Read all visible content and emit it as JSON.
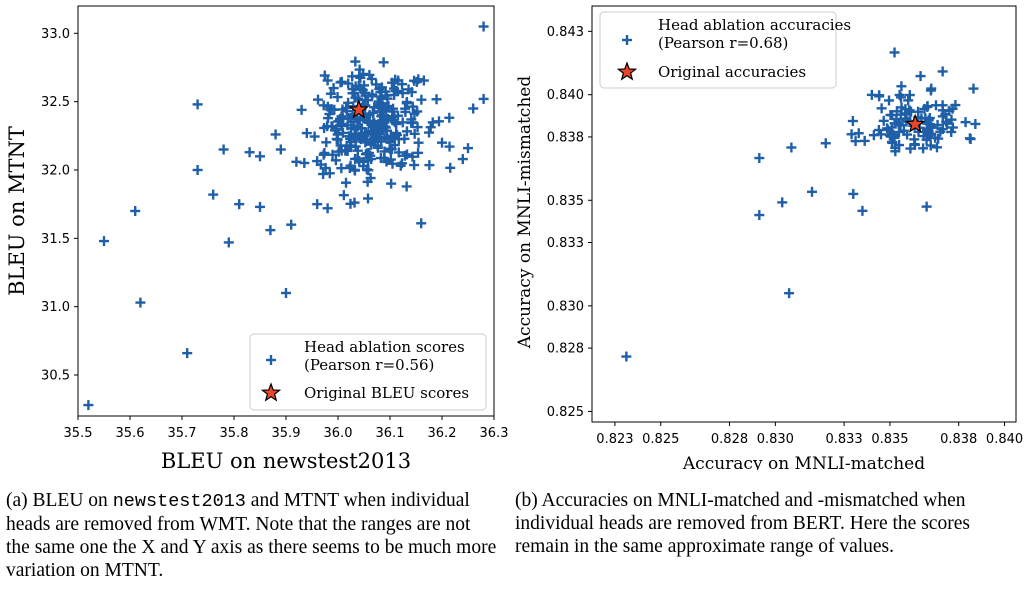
{
  "chart_data": [
    {
      "type": "scatter",
      "xlabel": "BLEU on newstest2013",
      "ylabel": "BLEU on MTNT",
      "xlim": [
        35.5,
        36.3
      ],
      "ylim": [
        30.2,
        33.2
      ],
      "xticks": [
        "35.5",
        "35.6",
        "35.7",
        "35.8",
        "35.9",
        "36.0",
        "36.1",
        "36.2",
        "36.3"
      ],
      "yticks": [
        "30.5",
        "31.0",
        "31.5",
        "32.0",
        "32.5",
        "33.0"
      ],
      "legend": {
        "location": "lower-right",
        "series_label_line1": "Head ablation scores",
        "series_label_line2": "(Pearson r=0.56)",
        "original_label": "Original BLEU scores"
      },
      "marker_color": "#1f5fa8",
      "star_color": "#e8462a",
      "original": {
        "x": 36.04,
        "y": 32.44
      },
      "outliers": [
        {
          "x": 35.52,
          "y": 30.28
        },
        {
          "x": 35.55,
          "y": 31.48
        },
        {
          "x": 35.61,
          "y": 31.7
        },
        {
          "x": 35.62,
          "y": 31.03
        },
        {
          "x": 35.71,
          "y": 30.66
        },
        {
          "x": 35.73,
          "y": 32.48
        },
        {
          "x": 35.73,
          "y": 32.0
        },
        {
          "x": 35.76,
          "y": 31.82
        },
        {
          "x": 35.78,
          "y": 32.15
        },
        {
          "x": 35.79,
          "y": 31.47
        },
        {
          "x": 35.81,
          "y": 31.75
        },
        {
          "x": 35.83,
          "y": 32.13
        },
        {
          "x": 35.85,
          "y": 31.73
        },
        {
          "x": 35.85,
          "y": 32.1
        },
        {
          "x": 35.87,
          "y": 31.56
        },
        {
          "x": 35.88,
          "y": 32.26
        },
        {
          "x": 35.89,
          "y": 32.15
        },
        {
          "x": 35.9,
          "y": 31.1
        },
        {
          "x": 35.91,
          "y": 31.6
        },
        {
          "x": 35.92,
          "y": 32.06
        },
        {
          "x": 35.93,
          "y": 32.44
        },
        {
          "x": 35.94,
          "y": 32.27
        },
        {
          "x": 35.96,
          "y": 31.75
        },
        {
          "x": 35.98,
          "y": 31.72
        },
        {
          "x": 36.16,
          "y": 31.61
        },
        {
          "x": 36.2,
          "y": 32.2
        },
        {
          "x": 36.24,
          "y": 32.08
        },
        {
          "x": 36.25,
          "y": 32.16
        },
        {
          "x": 36.26,
          "y": 32.45
        },
        {
          "x": 36.28,
          "y": 32.52
        },
        {
          "x": 36.28,
          "y": 33.05
        }
      ],
      "cluster": {
        "n": 300,
        "center_x": 36.06,
        "center_y": 32.32,
        "spread_x": 0.05,
        "spread_y": 0.2,
        "seed": 7
      }
    },
    {
      "type": "scatter",
      "xlabel": "Accuracy on MNLI-matched",
      "ylabel": "Accuracy on MNLI-mismatched",
      "xlim": [
        0.822,
        0.8405
      ],
      "ylim": [
        0.8245,
        0.8442
      ],
      "xticks": [
        "0.823",
        "0.825",
        "0.828",
        "0.830",
        "0.833",
        "0.835",
        "0.838",
        "0.840"
      ],
      "yticks": [
        "0.825",
        "0.828",
        "0.830",
        "0.833",
        "0.835",
        "0.838",
        "0.840",
        "0.843"
      ],
      "legend": {
        "location": "upper-left",
        "series_label_line1": "Head ablation accuracies",
        "series_label_line2": "(Pearson r=0.68)",
        "original_label": "Original accuracies"
      },
      "marker_color": "#1f5fa8",
      "star_color": "#e8462a",
      "original": {
        "x": 0.8361,
        "y": 0.8386
      },
      "outliers": [
        {
          "x": 0.8235,
          "y": 0.8276
        },
        {
          "x": 0.8293,
          "y": 0.8343
        },
        {
          "x": 0.8293,
          "y": 0.837
        },
        {
          "x": 0.8303,
          "y": 0.8349
        },
        {
          "x": 0.8306,
          "y": 0.8306
        },
        {
          "x": 0.8307,
          "y": 0.8375
        },
        {
          "x": 0.8316,
          "y": 0.8354
        },
        {
          "x": 0.8322,
          "y": 0.8377
        },
        {
          "x": 0.8334,
          "y": 0.8353
        },
        {
          "x": 0.8335,
          "y": 0.8378
        },
        {
          "x": 0.8338,
          "y": 0.8345
        },
        {
          "x": 0.8366,
          "y": 0.8347
        },
        {
          "x": 0.8373,
          "y": 0.8411
        },
        {
          "x": 0.8383,
          "y": 0.8387
        },
        {
          "x": 0.8352,
          "y": 0.842
        },
        {
          "x": 0.8355,
          "y": 0.8404
        }
      ],
      "cluster": {
        "n": 110,
        "center_x": 0.8361,
        "center_y": 0.8387,
        "spread_x": 0.0011,
        "spread_y": 0.0008,
        "seed": 11
      }
    }
  ],
  "captions": {
    "a_prefix": "(a)  BLEU on ",
    "a_mono": "newstest2013",
    "a_rest": " and MTNT when individual heads are removed from WMT. Note that the ranges are not the same one the X and Y axis as there seems to be much more variation on MTNT.",
    "b_text": "(b)  Accuracies on MNLI-matched and -mismatched when individual heads are removed from BERT. Here the scores remain in the same approximate range of values."
  }
}
